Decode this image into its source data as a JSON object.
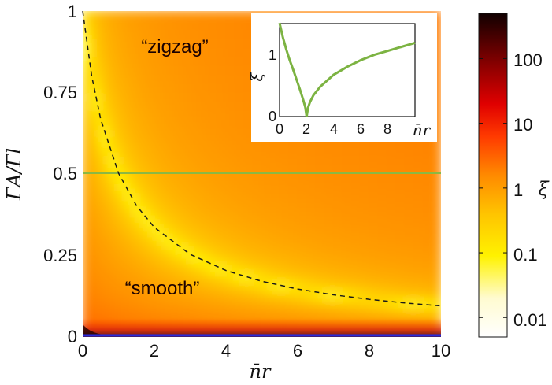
{
  "chart_data": [
    {
      "type": "heatmap",
      "title": "",
      "xlabel": "n̄r",
      "ylabel": "ΓA/Γl",
      "xlim": [
        0,
        10
      ],
      "ylim": [
        0,
        1
      ],
      "x_ticks": [
        "0",
        "2",
        "4",
        "6",
        "8",
        "10"
      ],
      "y_ticks": [
        "0",
        "0.25",
        "0.5",
        "0.75",
        "1"
      ],
      "colorbar": {
        "label": "ξ",
        "scale": "log",
        "ticks": [
          "0.01",
          "0.1",
          "1",
          "10",
          "100"
        ],
        "tick_values": [
          0.01,
          0.1,
          1,
          10,
          100
        ],
        "range": [
          0.005,
          500
        ],
        "colormap": [
          "#ffffff",
          "#fff6a0",
          "#ffe000",
          "#ffb400",
          "#ff7a00",
          "#ff2a00",
          "#d60000",
          "#7a0000",
          "#1a0000"
        ]
      },
      "annotations": [
        "“zigzag”",
        "“smooth”"
      ],
      "series": [
        {
          "type": "line",
          "style": "dashed",
          "color": "#222222",
          "x": [
            0,
            0.25,
            0.5,
            1,
            1.5,
            2,
            3,
            4,
            5,
            6,
            7,
            8,
            9,
            10
          ],
          "y": [
            1,
            0.8,
            0.667,
            0.5,
            0.4,
            0.333,
            0.25,
            0.2,
            0.1667,
            0.1429,
            0.125,
            0.1111,
            0.1,
            0.0909
          ]
        },
        {
          "type": "hline",
          "color": "#8ab844",
          "y": 0.5
        }
      ]
    },
    {
      "type": "line",
      "title": "",
      "xlabel": "n̄r",
      "ylabel": "ξ",
      "xlim": [
        0,
        10
      ],
      "ylim": [
        0,
        1.4
      ],
      "x_ticks": [
        "0",
        "2",
        "4",
        "6",
        "8"
      ],
      "y_ticks": [
        "0",
        "1"
      ],
      "series": [
        {
          "color": "#7cb342",
          "x": [
            0,
            0.25,
            0.5,
            0.75,
            1,
            1.25,
            1.5,
            1.75,
            1.9,
            2,
            2.1,
            2.25,
            2.5,
            3,
            4,
            5,
            6,
            7,
            8,
            9,
            10
          ],
          "y": [
            1.41,
            1.19,
            1.01,
            0.85,
            0.71,
            0.56,
            0.41,
            0.25,
            0.14,
            0,
            0.13,
            0.22,
            0.32,
            0.45,
            0.63,
            0.75,
            0.85,
            0.93,
            0.99,
            1.05,
            1.11
          ]
        }
      ]
    }
  ]
}
